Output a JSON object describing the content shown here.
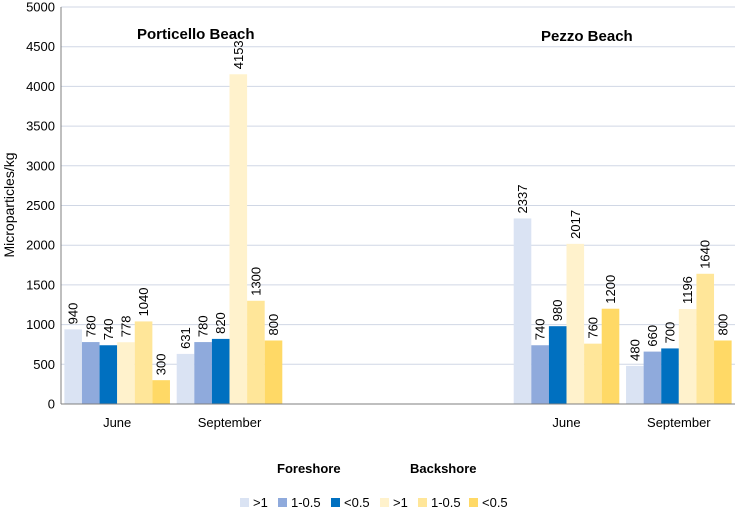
{
  "chart_data": {
    "type": "bar",
    "ylabel": "Microparticles/kg",
    "ylim": [
      0,
      5000
    ],
    "yticks": [
      0,
      500,
      1000,
      1500,
      2000,
      2500,
      3000,
      3500,
      4000,
      4500,
      5000
    ],
    "grid": true,
    "groups": [
      {
        "title": "Porticello Beach",
        "categories": [
          {
            "label": "June",
            "values": [
              940,
              780,
              740,
              778,
              1040,
              300
            ]
          },
          {
            "label": "September",
            "values": [
              631,
              780,
              820,
              4153,
              1300,
              800
            ]
          }
        ]
      },
      {
        "title": "Pezzo Beach",
        "categories": [
          {
            "label": "June",
            "values": [
              2337,
              740,
              980,
              2017,
              760,
              1200
            ]
          },
          {
            "label": "September",
            "values": [
              480,
              660,
              700,
              1196,
              1640,
              800
            ]
          }
        ]
      }
    ],
    "series": [
      {
        "name": ">1",
        "zone": "Foreshore",
        "color": "#dae3f3"
      },
      {
        "name": "1-0.5",
        "zone": "Foreshore",
        "color": "#8faadc"
      },
      {
        "name": "<0.5",
        "zone": "Foreshore",
        "color": "#0070c0"
      },
      {
        "name": ">1",
        "zone": "Backshore",
        "color": "#fff2cc"
      },
      {
        "name": "1-0.5",
        "zone": "Backshore",
        "color": "#ffe699"
      },
      {
        "name": "<0.5",
        "zone": "Backshore",
        "color": "#ffd966"
      }
    ],
    "legend_headings": [
      "Foreshore",
      "Backshore"
    ],
    "legend_position": "bottom"
  }
}
